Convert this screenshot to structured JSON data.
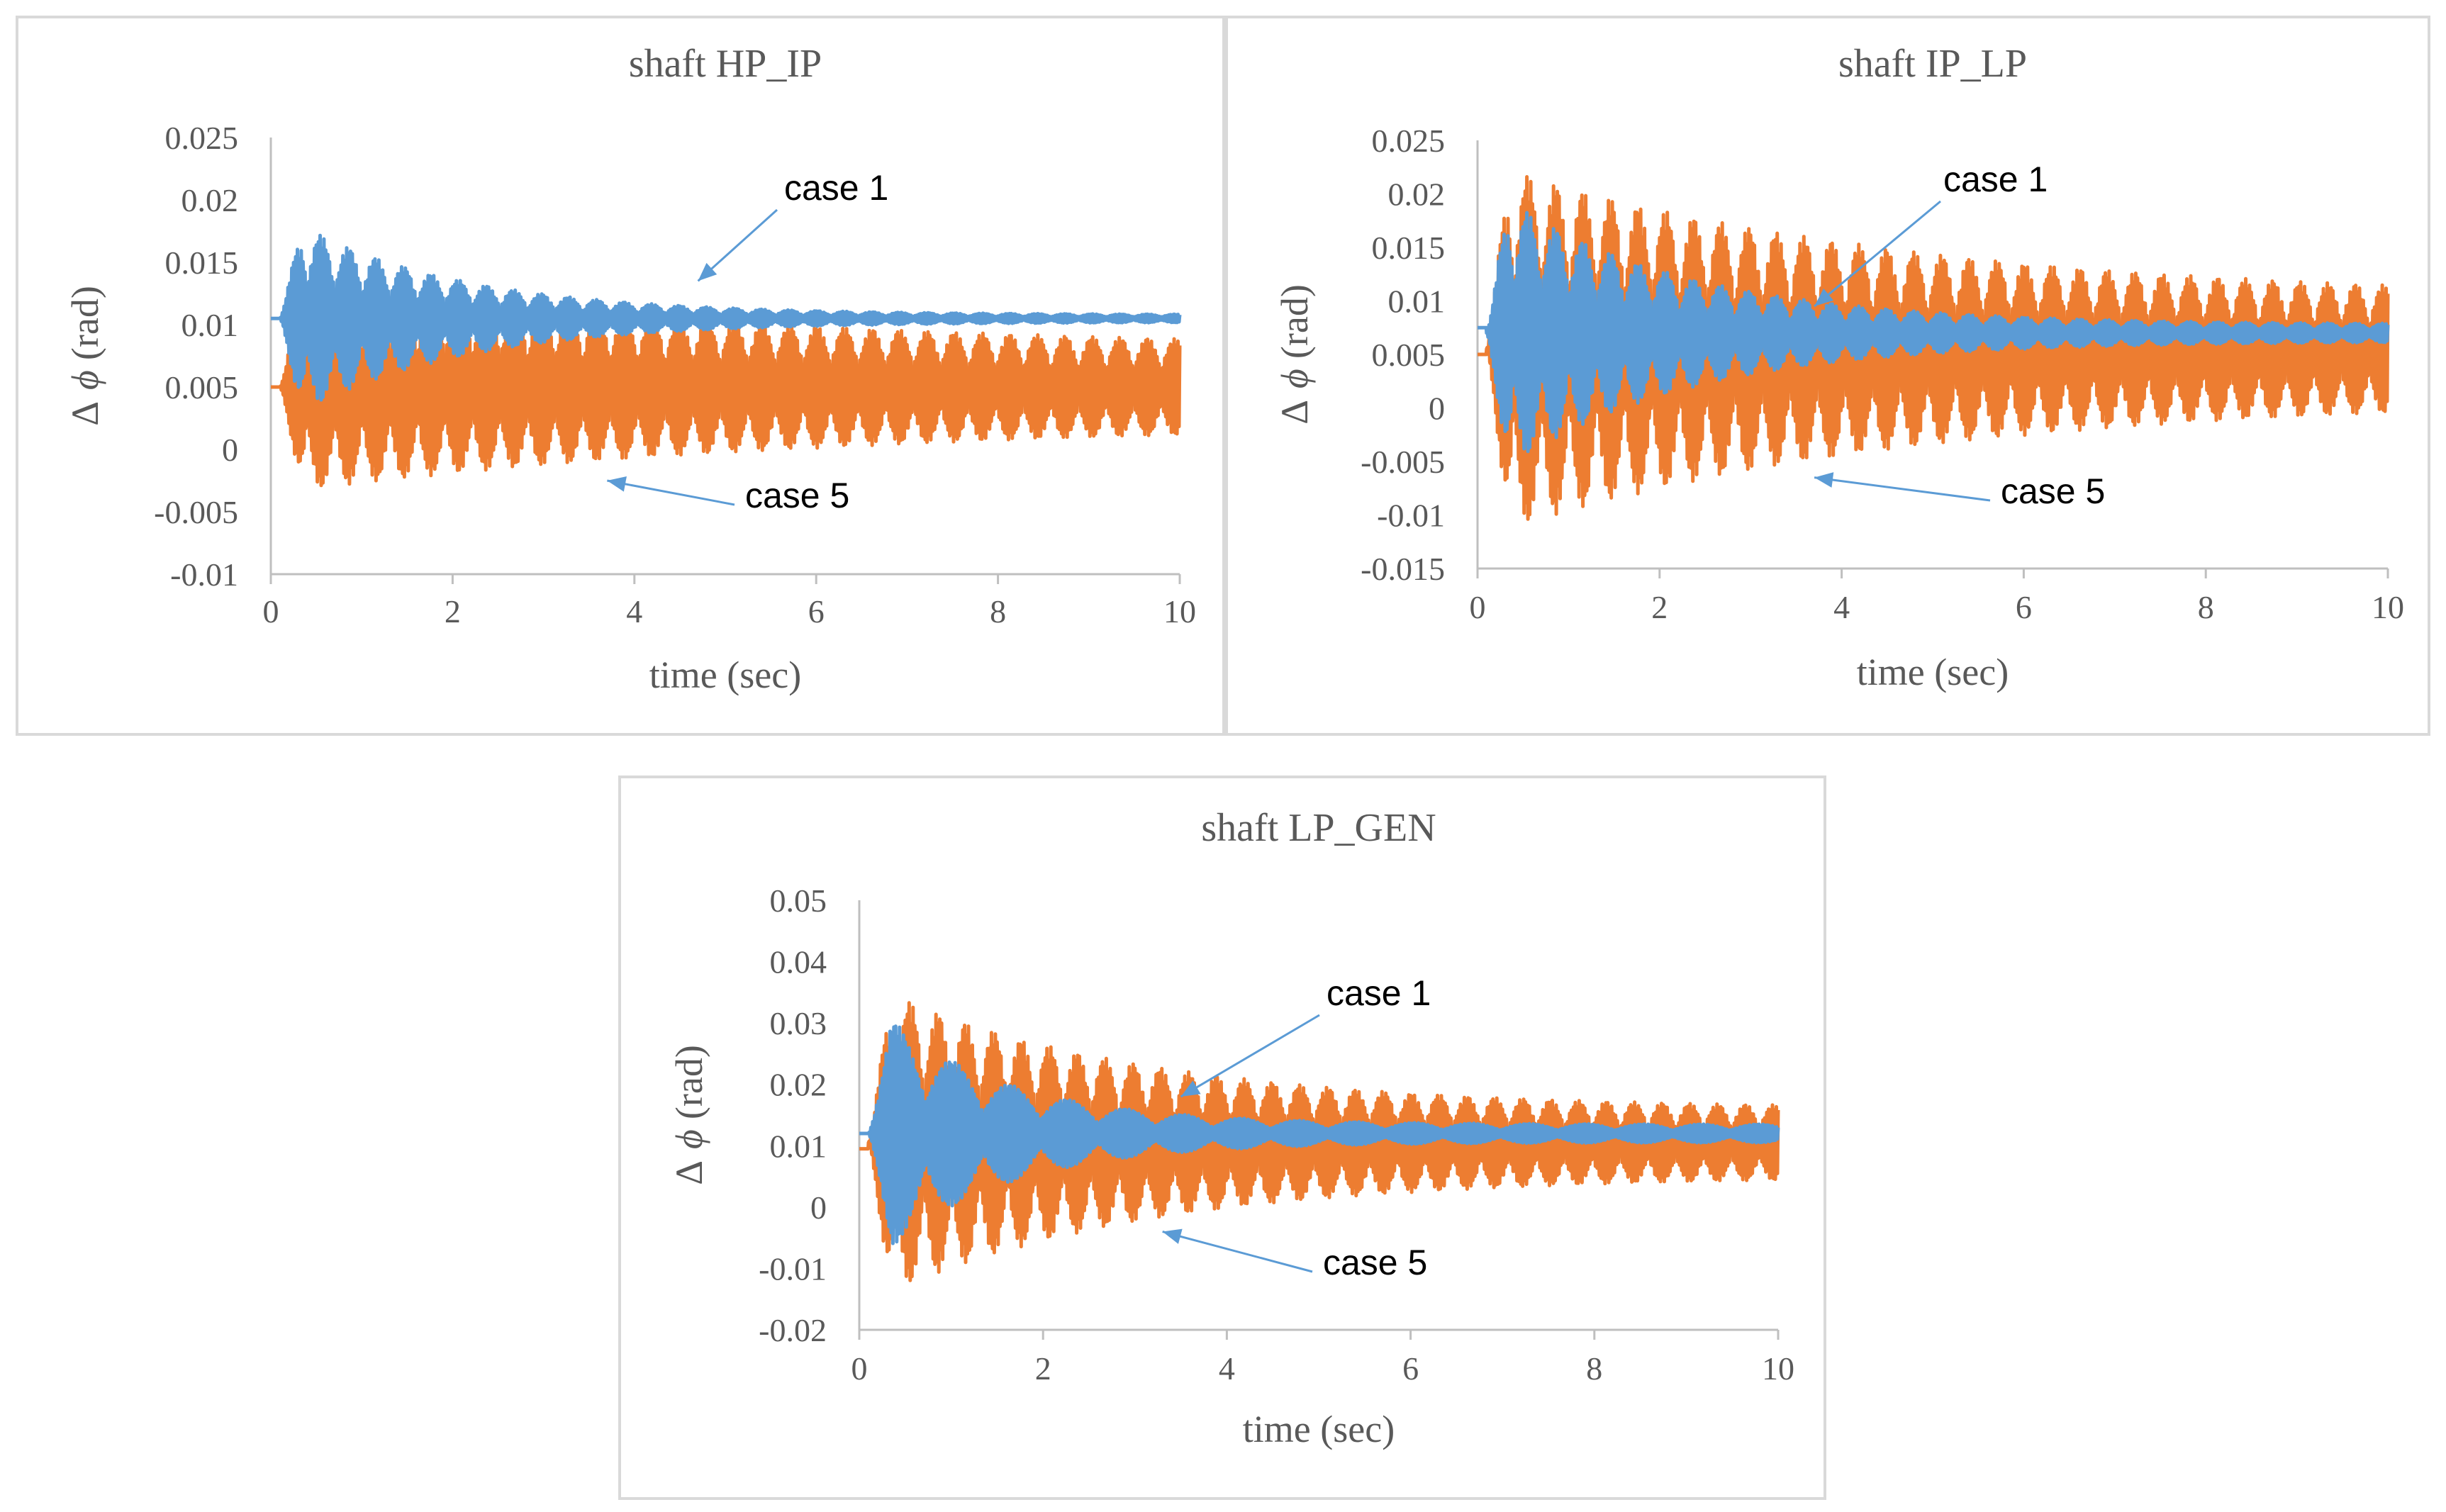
{
  "chart_data": [
    {
      "type": "line",
      "title": "shaft HP_IP",
      "xlabel": "time (sec)",
      "ylabel_delta": "Δ",
      "ylabel_phi": "ϕ",
      "ylabel_unit": "(rad)",
      "xlim": [
        0,
        10
      ],
      "ylim": [
        -0.01,
        0.025
      ],
      "x_ticks": [
        0,
        2,
        4,
        6,
        8,
        10
      ],
      "x_tick_labels": [
        "0",
        "2",
        "4",
        "6",
        "8",
        "10"
      ],
      "y_ticks": [
        -0.01,
        -0.005,
        0,
        0.005,
        0.01,
        0.015,
        0.02,
        0.025
      ],
      "y_tick_labels": [
        "-0.01",
        "-0.005",
        "0",
        "0.005",
        "0.01",
        "0.015",
        "0.02",
        "0.025"
      ],
      "series": [
        {
          "name": "case 5",
          "color": "#ed7d31",
          "start_value": 0.005,
          "center": 0.005,
          "amp_start": 0.0085,
          "amp_end": 0.0028,
          "decay": 0.17,
          "frequency_hz": 3.3,
          "beat_hz": 0.0
        },
        {
          "name": "case 1",
          "color": "#5b9bd5",
          "start_value": 0.0105,
          "center": 0.0105,
          "amp_start": 0.0085,
          "amp_end": 0.0003,
          "decay": 0.55,
          "frequency_hz": 3.3,
          "beat_hz": 0.0
        }
      ],
      "annotations": [
        {
          "text": "case 1",
          "series": "case 1",
          "point_x": 4.7,
          "point_y": 0.0135
        },
        {
          "text": "case 5",
          "series": "case 5",
          "point_x": 3.7,
          "point_y": -0.0025
        }
      ]
    },
    {
      "type": "line",
      "title": "shaft IP_LP",
      "xlabel": "time (sec)",
      "ylabel_delta": "Δ",
      "ylabel_phi": "ϕ",
      "ylabel_unit": "(rad)",
      "xlim": [
        0,
        10
      ],
      "ylim": [
        -0.015,
        0.025
      ],
      "x_ticks": [
        0,
        2,
        4,
        6,
        8,
        10
      ],
      "x_tick_labels": [
        "0",
        "2",
        "4",
        "6",
        "8",
        "10"
      ],
      "y_ticks": [
        -0.015,
        -0.01,
        -0.005,
        0,
        0.005,
        0.01,
        0.015,
        0.02,
        0.025
      ],
      "y_tick_labels": [
        "-0.015",
        "-0.01",
        "-0.005",
        "0",
        "0.005",
        "0.01",
        "0.015",
        "0.02",
        "0.025"
      ],
      "series": [
        {
          "name": "case 5",
          "color": "#ed7d31",
          "start_value": 0.005,
          "center": 0.0055,
          "amp_start": 0.0175,
          "amp_end": 0.0045,
          "decay": 0.22,
          "frequency_hz": 3.3,
          "beat_hz": 0.0
        },
        {
          "name": "case 1",
          "color": "#5b9bd5",
          "start_value": 0.0075,
          "center": 0.007,
          "amp_start": 0.014,
          "amp_end": 0.0008,
          "decay": 0.5,
          "frequency_hz": 3.3,
          "beat_hz": 0.0
        }
      ],
      "annotations": [
        {
          "text": "case 1",
          "series": "case 1",
          "point_x": 3.7,
          "point_y": 0.0095
        },
        {
          "text": "case 5",
          "series": "case 5",
          "point_x": 3.7,
          "point_y": -0.0065
        }
      ]
    },
    {
      "type": "line",
      "title": "shaft LP_GEN",
      "xlabel": "time (sec)",
      "ylabel_delta": "Δ",
      "ylabel_phi": "ϕ",
      "ylabel_unit": "(rad)",
      "xlim": [
        0,
        10
      ],
      "ylim": [
        -0.02,
        0.05
      ],
      "x_ticks": [
        0,
        2,
        4,
        6,
        8,
        10
      ],
      "x_tick_labels": [
        "0",
        "2",
        "4",
        "6",
        "8",
        "10"
      ],
      "y_ticks": [
        -0.02,
        -0.01,
        0,
        0.01,
        0.02,
        0.03,
        0.04,
        0.05
      ],
      "y_tick_labels": [
        "-0.02",
        "-0.01",
        "0",
        "0.01",
        "0.02",
        "0.03",
        "0.04",
        "0.05"
      ],
      "series": [
        {
          "name": "case 5",
          "color": "#ed7d31",
          "start_value": 0.0095,
          "center": 0.0105,
          "amp_start": 0.026,
          "amp_end": 0.0055,
          "decay": 0.35,
          "frequency_hz": 3.3,
          "beat_hz": 0.0
        },
        {
          "name": "case 1",
          "color": "#5b9bd5",
          "start_value": 0.012,
          "center": 0.012,
          "amp_start": 0.022,
          "amp_end": 0.0015,
          "decay": 0.75,
          "frequency_hz": 1.6,
          "beat_hz": 0.0
        }
      ],
      "annotations": [
        {
          "text": "case 1",
          "series": "case 1",
          "point_x": 3.5,
          "point_y": 0.018
        },
        {
          "text": "case 5",
          "series": "case 5",
          "point_x": 3.3,
          "point_y": -0.004
        }
      ]
    }
  ]
}
